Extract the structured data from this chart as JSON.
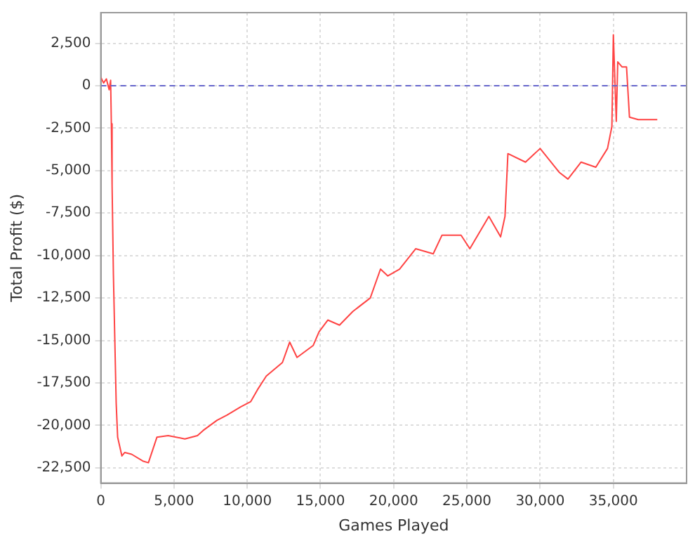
{
  "chart_data": {
    "type": "line",
    "xlabel": "Games Played",
    "ylabel": "Total Profit ($)",
    "xlim": [
      0,
      40000
    ],
    "ylim": [
      -23400,
      4300
    ],
    "xticks": [
      0,
      {
        "value": 5000,
        "label": "5,000"
      },
      {
        "value": 10000,
        "label": "10,000"
      },
      {
        "value": 15000,
        "label": "15,000"
      },
      {
        "value": 20000,
        "label": "20,000"
      },
      {
        "value": 25000,
        "label": "25,000"
      },
      {
        "value": 30000,
        "label": "30,000"
      },
      {
        "value": 35000,
        "label": "35,000"
      }
    ],
    "yticks": [
      {
        "value": -22500,
        "label": "-22,500"
      },
      {
        "value": -20000,
        "label": "-20,000"
      },
      {
        "value": -17500,
        "label": "-17,500"
      },
      {
        "value": -15000,
        "label": "-15,000"
      },
      {
        "value": -12500,
        "label": "-12,500"
      },
      {
        "value": -10000,
        "label": "-10,000"
      },
      {
        "value": -7500,
        "label": "-7,500"
      },
      {
        "value": -5000,
        "label": "-5,000"
      },
      {
        "value": -2500,
        "label": "-2,500"
      },
      0,
      {
        "value": 2500,
        "label": "2,500"
      }
    ],
    "grid": true,
    "legend": false,
    "marker": "none",
    "line_style": "solid",
    "ref_lines": [
      {
        "axis": "y",
        "value": 0,
        "color": "#6666cc",
        "line_style": "dashed"
      }
    ],
    "series": [
      {
        "color": "#ff4444",
        "x": [
          0,
          190,
          380,
          570,
          670,
          720,
          770,
          860,
          960,
          1050,
          1150,
          1440,
          1630,
          2100,
          2870,
          3250,
          3830,
          4600,
          5740,
          6600,
          6990,
          7940,
          8610,
          9570,
          10240,
          10700,
          11300,
          12400,
          12900,
          13400,
          14500,
          14900,
          15500,
          16300,
          17200,
          18400,
          19100,
          19600,
          20400,
          21500,
          22700,
          23300,
          24600,
          25200,
          26500,
          27300,
          27600,
          27800,
          29000,
          30000,
          31300,
          31900,
          32800,
          33800,
          34600,
          34900,
          35000,
          35200,
          35300,
          35600,
          35900,
          36100,
          36700,
          38000
        ],
        "values": [
          500,
          160,
          400,
          -240,
          320,
          -2250,
          -5860,
          -11100,
          -15100,
          -18700,
          -20700,
          -21800,
          -21600,
          -21700,
          -22100,
          -22200,
          -20700,
          -20600,
          -20800,
          -20600,
          -20300,
          -19700,
          -19400,
          -18900,
          -18600,
          -17900,
          -17100,
          -16300,
          -15100,
          -16000,
          -15300,
          -14500,
          -13800,
          -14100,
          -13300,
          -12500,
          -10800,
          -11200,
          -10800,
          -9600,
          -9900,
          -8800,
          -8800,
          -9600,
          -7700,
          -8900,
          -7700,
          -4000,
          -4500,
          -3700,
          -5100,
          -5500,
          -4500,
          -4800,
          -3700,
          -2400,
          3000,
          -2100,
          1400,
          1100,
          1100,
          -1850,
          -2000,
          -2000
        ]
      }
    ]
  }
}
